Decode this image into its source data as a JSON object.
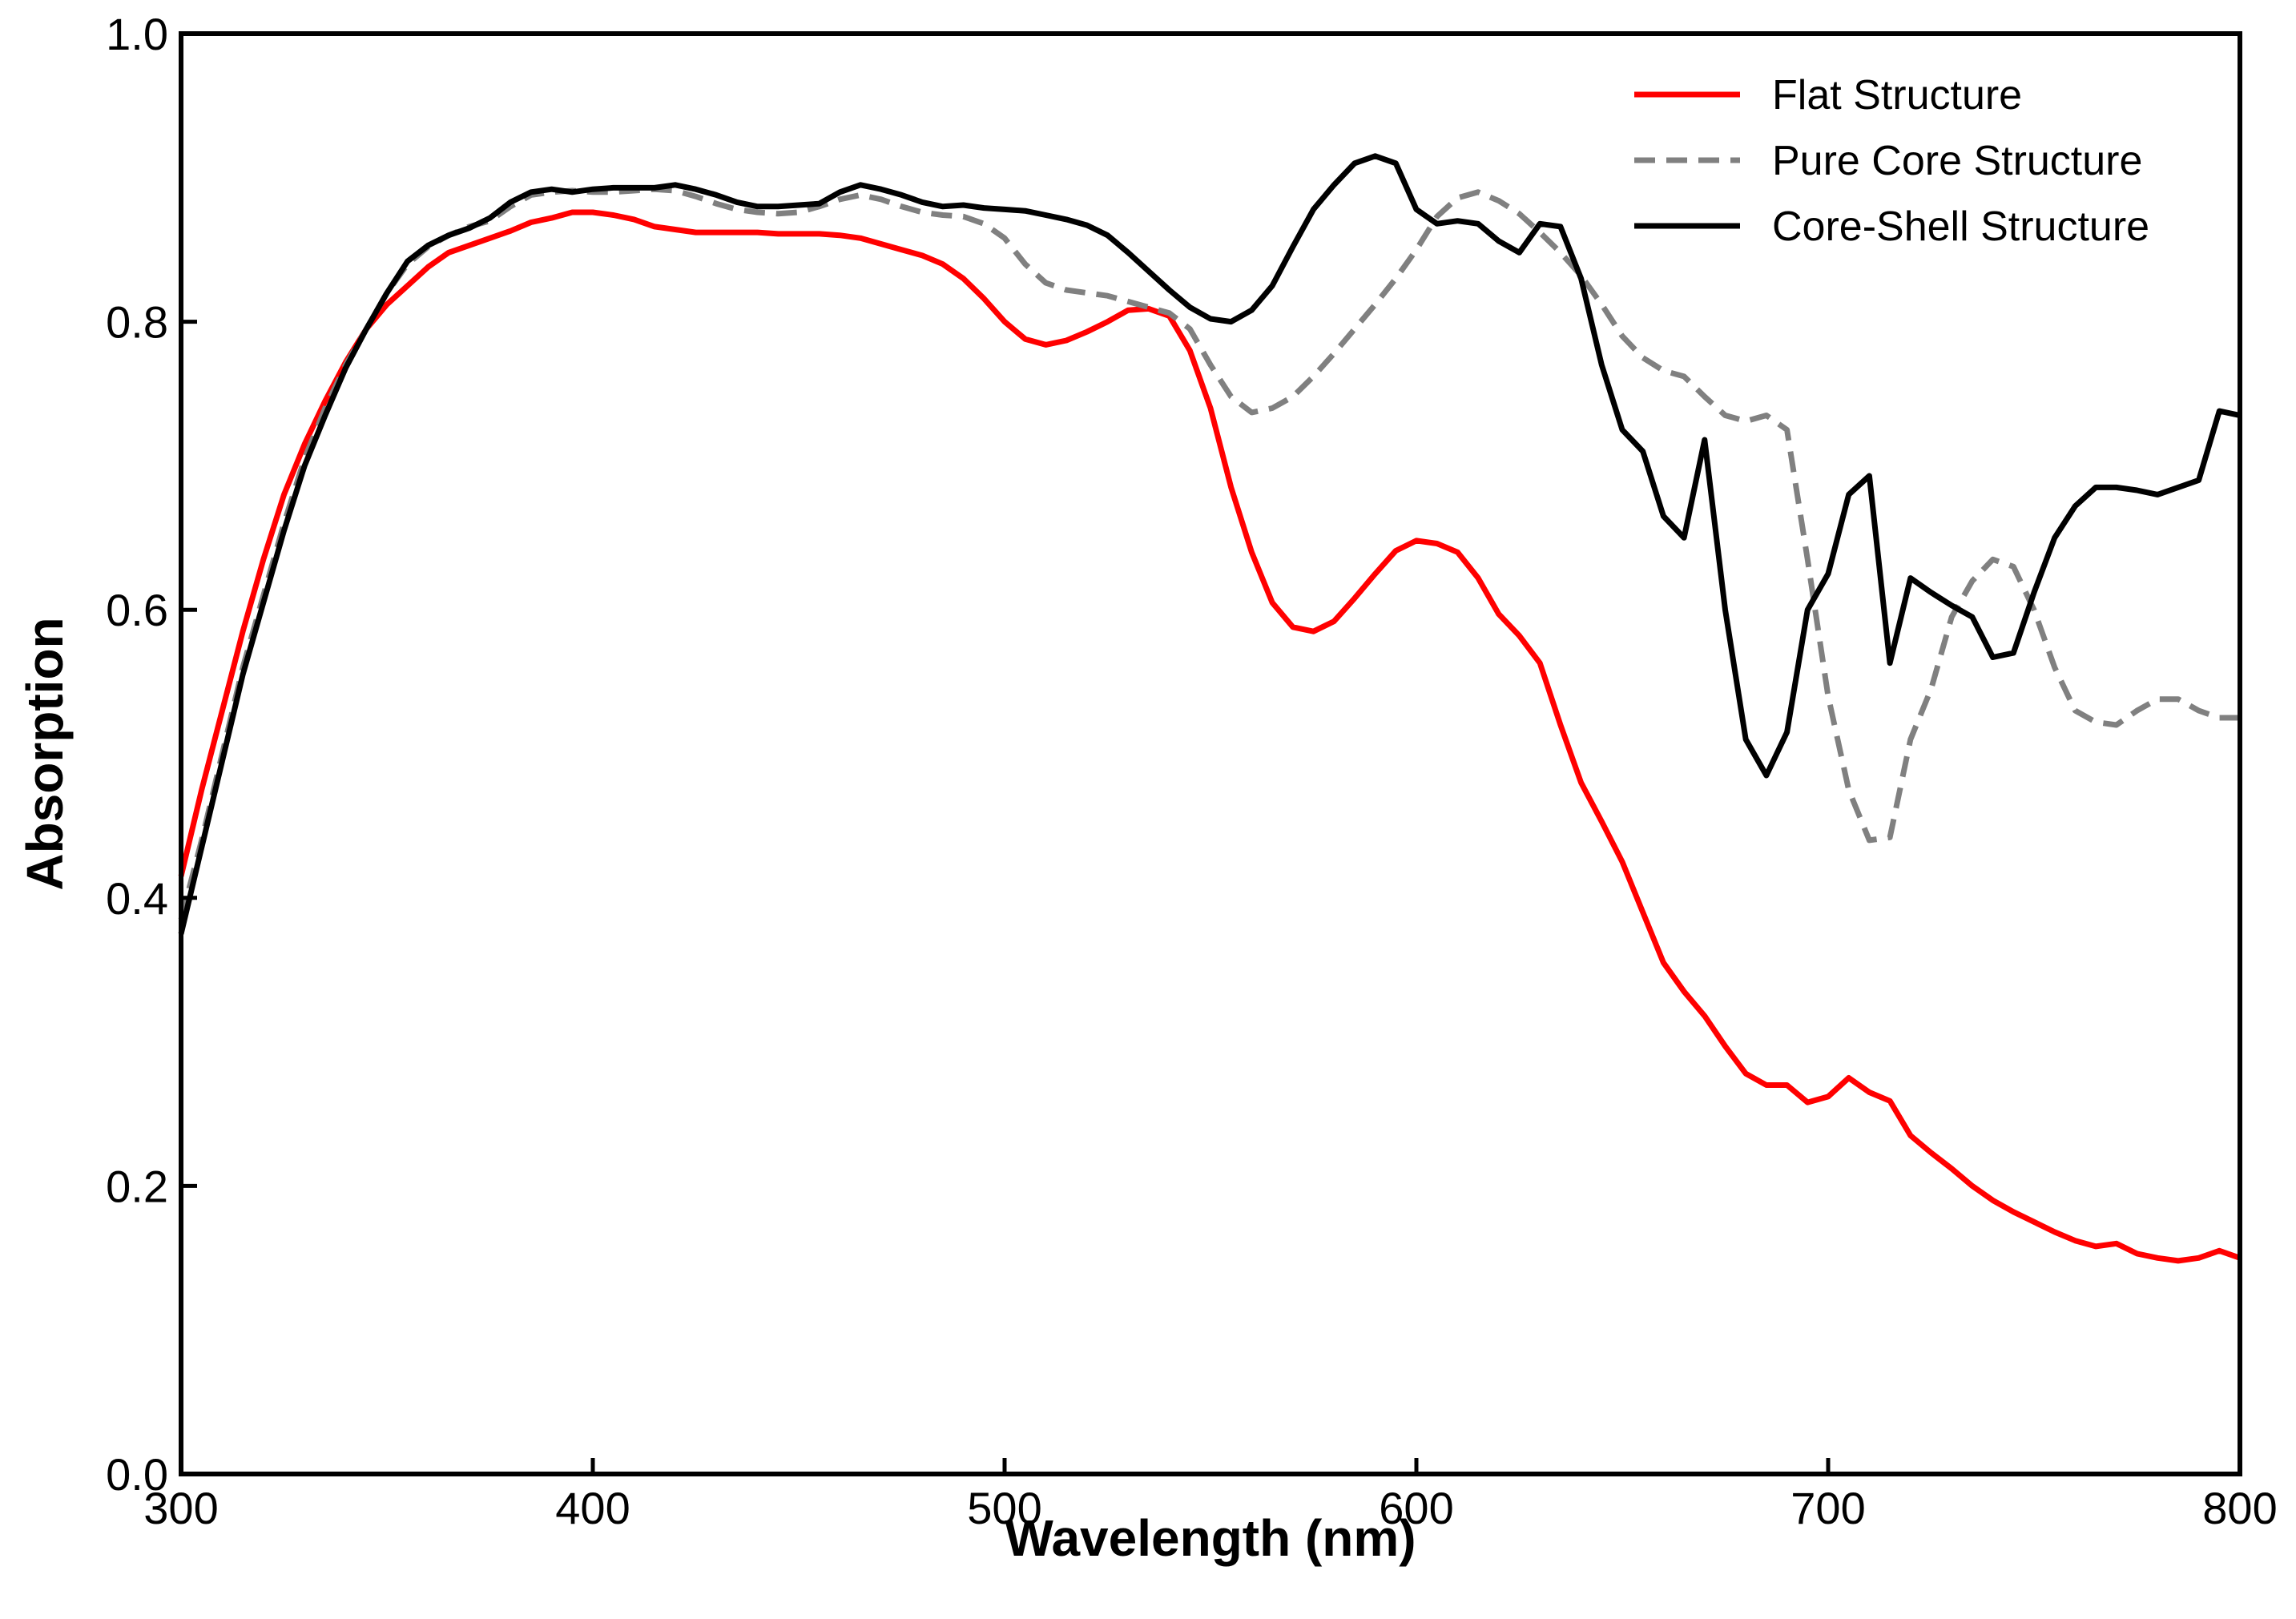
{
  "chart_data": {
    "type": "line",
    "title": "",
    "xlabel": "Wavelength (nm)",
    "ylabel": "Absorption",
    "xlim": [
      300,
      800
    ],
    "ylim": [
      0.0,
      1.0
    ],
    "xticks": [
      300,
      400,
      500,
      600,
      700,
      800
    ],
    "xtick_labels": [
      "300",
      "400",
      "500",
      "600",
      "700",
      "800"
    ],
    "yticks": [
      0.0,
      0.2,
      0.4,
      0.6,
      0.8,
      1.0
    ],
    "ytick_labels": [
      "0.0",
      "0.2",
      "0.4",
      "0.6",
      "0.8",
      "1.0"
    ],
    "grid": false,
    "legend_position": "top-right",
    "series": [
      {
        "name": "Flat Structure",
        "color": "#ff0000",
        "dash": "solid",
        "x": [
          300,
          305,
          310,
          315,
          320,
          325,
          330,
          335,
          340,
          345,
          350,
          355,
          360,
          365,
          370,
          375,
          380,
          385,
          390,
          395,
          400,
          405,
          410,
          415,
          420,
          425,
          430,
          435,
          440,
          445,
          450,
          455,
          460,
          465,
          470,
          475,
          480,
          485,
          490,
          495,
          500,
          505,
          510,
          515,
          520,
          525,
          530,
          535,
          540,
          545,
          550,
          555,
          560,
          565,
          570,
          575,
          580,
          585,
          590,
          595,
          600,
          605,
          610,
          615,
          620,
          625,
          630,
          635,
          640,
          645,
          650,
          655,
          660,
          665,
          670,
          675,
          680,
          685,
          690,
          695,
          700,
          705,
          710,
          715,
          720,
          725,
          730,
          735,
          740,
          745,
          750,
          755,
          760,
          765,
          770,
          775,
          780,
          785,
          790,
          795,
          800
        ],
        "y": [
          0.415,
          0.475,
          0.53,
          0.585,
          0.635,
          0.68,
          0.715,
          0.745,
          0.772,
          0.795,
          0.812,
          0.825,
          0.838,
          0.848,
          0.853,
          0.858,
          0.863,
          0.869,
          0.872,
          0.876,
          0.876,
          0.874,
          0.871,
          0.866,
          0.864,
          0.862,
          0.862,
          0.862,
          0.862,
          0.861,
          0.861,
          0.861,
          0.86,
          0.858,
          0.854,
          0.85,
          0.846,
          0.84,
          0.83,
          0.816,
          0.8,
          0.788,
          0.784,
          0.787,
          0.793,
          0.8,
          0.808,
          0.809,
          0.804,
          0.78,
          0.74,
          0.685,
          0.64,
          0.605,
          0.588,
          0.585,
          0.592,
          0.608,
          0.625,
          0.641,
          0.648,
          0.646,
          0.64,
          0.622,
          0.597,
          0.582,
          0.563,
          0.52,
          0.48,
          0.453,
          0.425,
          0.39,
          0.355,
          0.335,
          0.318,
          0.297,
          0.278,
          0.27,
          0.27,
          0.258,
          0.262,
          0.275,
          0.265,
          0.259,
          0.235,
          0.223,
          0.212,
          0.2,
          0.19,
          0.182,
          0.175,
          0.168,
          0.162,
          0.158,
          0.16,
          0.153,
          0.15,
          0.148,
          0.15,
          0.155,
          0.15
        ]
      },
      {
        "name": "Pure Core Structure",
        "color": "#808080",
        "dash": "dashed",
        "x": [
          300,
          305,
          310,
          315,
          320,
          325,
          330,
          335,
          340,
          345,
          350,
          355,
          360,
          365,
          370,
          375,
          380,
          385,
          390,
          395,
          400,
          405,
          410,
          415,
          420,
          425,
          430,
          435,
          440,
          445,
          450,
          455,
          460,
          465,
          470,
          475,
          480,
          485,
          490,
          495,
          500,
          505,
          510,
          515,
          520,
          525,
          530,
          535,
          540,
          545,
          550,
          555,
          560,
          565,
          570,
          575,
          580,
          585,
          590,
          595,
          600,
          605,
          610,
          615,
          620,
          625,
          630,
          635,
          640,
          645,
          650,
          655,
          660,
          665,
          670,
          675,
          680,
          685,
          690,
          695,
          700,
          705,
          710,
          715,
          720,
          725,
          730,
          735,
          740,
          745,
          750,
          755,
          760,
          765,
          770,
          775,
          780,
          785,
          790,
          795,
          800
        ],
        "y": [
          0.385,
          0.44,
          0.5,
          0.56,
          0.61,
          0.66,
          0.705,
          0.74,
          0.77,
          0.795,
          0.82,
          0.84,
          0.852,
          0.86,
          0.866,
          0.87,
          0.88,
          0.888,
          0.89,
          0.891,
          0.89,
          0.89,
          0.891,
          0.892,
          0.891,
          0.887,
          0.882,
          0.878,
          0.876,
          0.875,
          0.876,
          0.88,
          0.885,
          0.888,
          0.885,
          0.88,
          0.876,
          0.874,
          0.873,
          0.868,
          0.858,
          0.84,
          0.827,
          0.822,
          0.82,
          0.818,
          0.814,
          0.81,
          0.806,
          0.795,
          0.77,
          0.748,
          0.737,
          0.74,
          0.748,
          0.762,
          0.778,
          0.795,
          0.812,
          0.83,
          0.85,
          0.873,
          0.886,
          0.89,
          0.884,
          0.875,
          0.862,
          0.848,
          0.832,
          0.812,
          0.79,
          0.775,
          0.766,
          0.762,
          0.748,
          0.735,
          0.731,
          0.735,
          0.725,
          0.635,
          0.54,
          0.475,
          0.44,
          0.442,
          0.51,
          0.545,
          0.595,
          0.62,
          0.635,
          0.63,
          0.6,
          0.56,
          0.53,
          0.522,
          0.52,
          0.53,
          0.538,
          0.538,
          0.53,
          0.525,
          0.525
        ]
      },
      {
        "name": "Core-Shell Structure",
        "color": "#000000",
        "dash": "solid",
        "x": [
          300,
          305,
          310,
          315,
          320,
          325,
          330,
          335,
          340,
          345,
          350,
          355,
          360,
          365,
          370,
          375,
          380,
          385,
          390,
          395,
          400,
          405,
          410,
          415,
          420,
          425,
          430,
          435,
          440,
          445,
          450,
          455,
          460,
          465,
          470,
          475,
          480,
          485,
          490,
          495,
          500,
          505,
          510,
          515,
          520,
          525,
          530,
          535,
          540,
          545,
          550,
          555,
          560,
          565,
          570,
          575,
          580,
          585,
          590,
          595,
          600,
          605,
          610,
          615,
          620,
          625,
          630,
          635,
          640,
          645,
          650,
          655,
          660,
          665,
          670,
          675,
          680,
          685,
          690,
          695,
          700,
          705,
          710,
          715,
          720,
          725,
          730,
          735,
          740,
          745,
          750,
          755,
          760,
          765,
          770,
          775,
          780,
          785,
          790,
          795,
          800
        ],
        "y": [
          0.375,
          0.435,
          0.495,
          0.555,
          0.605,
          0.655,
          0.7,
          0.735,
          0.768,
          0.795,
          0.82,
          0.842,
          0.853,
          0.86,
          0.865,
          0.872,
          0.883,
          0.89,
          0.892,
          0.89,
          0.892,
          0.893,
          0.893,
          0.893,
          0.895,
          0.892,
          0.888,
          0.883,
          0.88,
          0.88,
          0.881,
          0.882,
          0.89,
          0.895,
          0.892,
          0.888,
          0.883,
          0.88,
          0.881,
          0.879,
          0.878,
          0.877,
          0.874,
          0.871,
          0.867,
          0.86,
          0.848,
          0.835,
          0.822,
          0.81,
          0.802,
          0.8,
          0.808,
          0.825,
          0.852,
          0.878,
          0.895,
          0.91,
          0.915,
          0.91,
          0.878,
          0.868,
          0.87,
          0.868,
          0.856,
          0.848,
          0.868,
          0.866,
          0.83,
          0.77,
          0.725,
          0.71,
          0.665,
          0.65,
          0.718,
          0.6,
          0.51,
          0.485,
          0.515,
          0.6,
          0.625,
          0.68,
          0.693,
          0.563,
          0.622,
          0.612,
          0.603,
          0.595,
          0.567,
          0.57,
          0.612,
          0.65,
          0.672,
          0.685,
          0.685,
          0.683,
          0.68,
          0.685,
          0.69,
          0.738,
          0.735
        ]
      }
    ]
  }
}
